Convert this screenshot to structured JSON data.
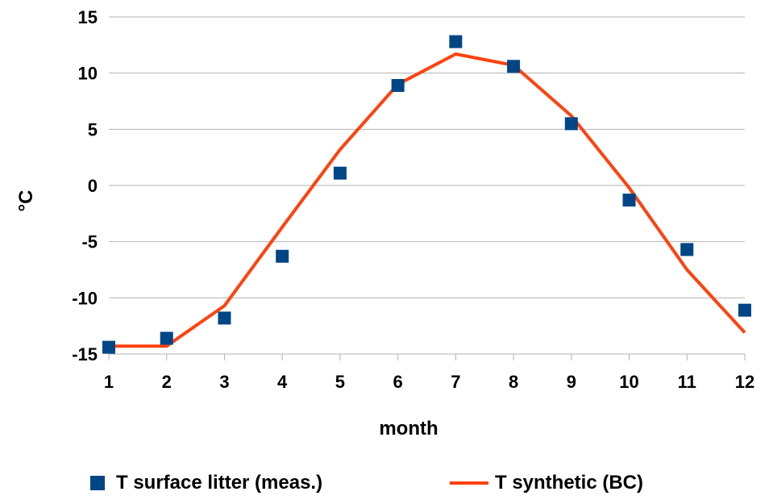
{
  "chart_data": {
    "type": "line",
    "xlabel": "month",
    "ylabel": "°C",
    "xlim": [
      1,
      12
    ],
    "ylim": [
      -15,
      15
    ],
    "x_ticks": [
      1,
      2,
      3,
      4,
      5,
      6,
      7,
      8,
      9,
      10,
      11,
      12
    ],
    "y_ticks": [
      -15,
      -10,
      -5,
      0,
      5,
      10,
      15
    ],
    "grid": "horizontal",
    "legend_position": "bottom",
    "x": [
      1,
      2,
      3,
      4,
      5,
      6,
      7,
      8,
      9,
      10,
      11,
      12
    ],
    "series": [
      {
        "name": "T surface litter (meas.)",
        "style": "markers",
        "marker": "square",
        "color": "#004586",
        "values": [
          -14.4,
          -13.6,
          -11.8,
          -6.3,
          1.1,
          8.9,
          12.8,
          10.6,
          5.5,
          -1.3,
          -5.7,
          -11.1
        ]
      },
      {
        "name": "T synthetic (BC)",
        "style": "line",
        "color": "#ff420e",
        "values": [
          -14.3,
          -14.3,
          -10.7,
          -3.7,
          3.2,
          9.0,
          11.7,
          10.7,
          6.2,
          -0.2,
          -7.5,
          -13.1
        ]
      }
    ]
  }
}
